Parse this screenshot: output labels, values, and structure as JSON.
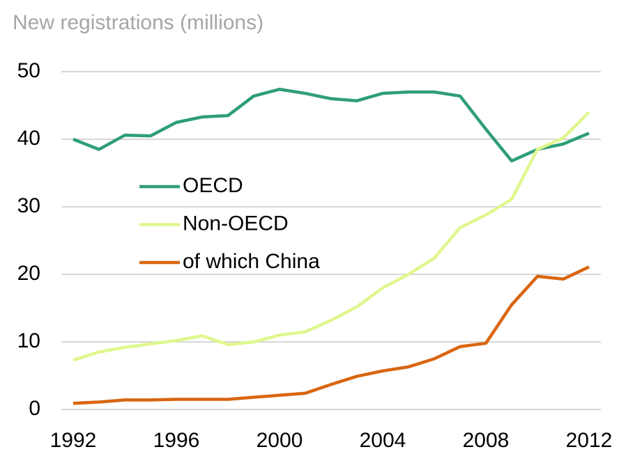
{
  "chart_data": {
    "type": "line",
    "title": "New registrations (millions)",
    "x": [
      1992,
      1993,
      1994,
      1995,
      1996,
      1997,
      1998,
      1999,
      2000,
      2001,
      2002,
      2003,
      2004,
      2005,
      2006,
      2007,
      2008,
      2009,
      2010,
      2011,
      2012
    ],
    "series": [
      {
        "name": "OECD",
        "color": "#2e9e78",
        "values": [
          40.0,
          38.5,
          40.6,
          40.5,
          42.5,
          43.3,
          43.5,
          46.4,
          47.4,
          46.8,
          46.0,
          45.7,
          46.8,
          47.0,
          47.0,
          46.4,
          41.5,
          36.8,
          38.5,
          39.3,
          40.9
        ]
      },
      {
        "name": "Non-OECD",
        "color": "#dff78e",
        "values": [
          7.3,
          8.5,
          9.2,
          9.7,
          10.2,
          10.9,
          9.6,
          10.0,
          11.0,
          11.5,
          13.2,
          15.2,
          18.0,
          20.0,
          22.4,
          26.9,
          28.8,
          31.1,
          38.5,
          40.2,
          44.0
        ]
      },
      {
        "name": "of which China",
        "color": "#d9650f",
        "values": [
          0.9,
          1.1,
          1.4,
          1.4,
          1.5,
          1.5,
          1.5,
          1.8,
          2.1,
          2.4,
          3.7,
          4.9,
          5.7,
          6.3,
          7.5,
          9.3,
          9.8,
          15.5,
          19.7,
          19.3,
          21.1
        ]
      }
    ],
    "xlim": [
      1992,
      2012
    ],
    "xticks": [
      1992,
      1996,
      2000,
      2004,
      2008,
      2012
    ],
    "ylim": [
      0,
      50
    ],
    "yticks": [
      0,
      10,
      20,
      30,
      40,
      50
    ],
    "grid": true
  }
}
